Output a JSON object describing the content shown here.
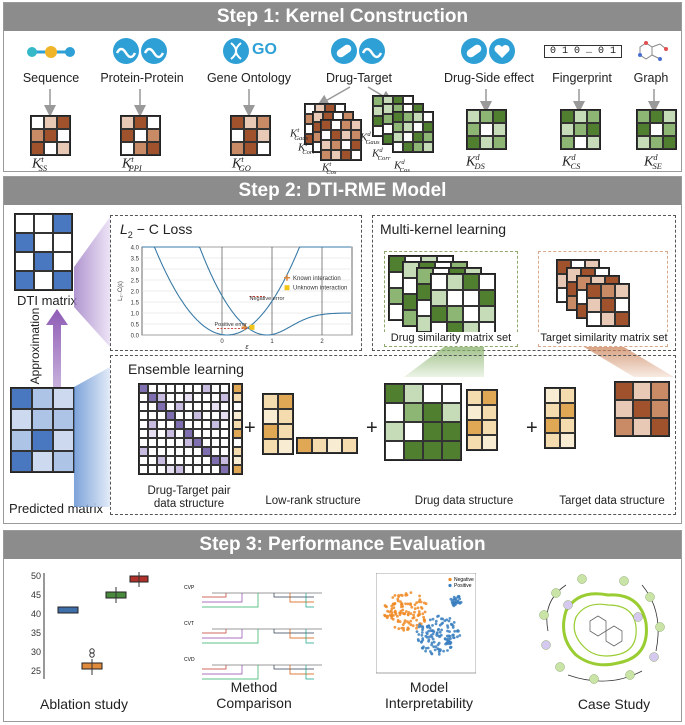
{
  "step1": {
    "title": "Step 1: Kernel Construction",
    "sources": {
      "sequence": "Sequence",
      "protein_protein": "Protein-Protein",
      "gene_ontology": "Gene Ontology",
      "go_icon": "GO",
      "drug_target": "Drug-Target",
      "drug_side_effect": "Drug-Side effect",
      "fingerprint": "Fingerprint",
      "fingerprint_bits": "0 1 0 … 0 1",
      "graph": "Graph"
    },
    "kernel_names": {
      "k_ss": "K",
      "k_ss_sup": "t",
      "k_ss_sub": "SS",
      "k_ppi": "K",
      "k_ppi_sup": "t",
      "k_ppi_sub": "PPI",
      "k_go": "K",
      "k_go_sup": "t",
      "k_go_sub": "GO",
      "k_t_gaus": "K",
      "k_t_gaus_sup": "t",
      "k_t_gaus_sub": "Gaus",
      "k_t_corr": "K",
      "k_t_corr_sup": "t",
      "k_t_corr_sub": "Corr",
      "k_t_cos": "K",
      "k_t_cos_sup": "t",
      "k_t_cos_sub": "Cos",
      "k_d_gaus": "K",
      "k_d_gaus_sup": "d",
      "k_d_gaus_sub": "Gaus",
      "k_d_corr": "K",
      "k_d_corr_sup": "d",
      "k_d_corr_sub": "Corr",
      "k_d_cos": "K",
      "k_d_cos_sup": "d",
      "k_d_cos_sub": "Cos",
      "k_ds": "K",
      "k_ds_sup": "d",
      "k_ds_sub": "DS",
      "k_cs": "K",
      "k_cs_sup": "d",
      "k_cs_sub": "CS",
      "k_se": "K",
      "k_se_sup": "d",
      "k_se_sub": "SE"
    }
  },
  "step2": {
    "title": "Step 2: DTI-RME Model",
    "dti_matrix": "DTI matrix",
    "approximation": "Approximation",
    "predicted_matrix": "Predicted matrix",
    "loss": {
      "title_math": "L",
      "title_sub": "2",
      "title_rest": " − C  Loss",
      "ylabel": "L₂₋C(ε)",
      "xlabel": "ε",
      "legend_known": "Known interaction",
      "legend_unknown": "Unknown interaction",
      "negative_error": "Negative error",
      "positive_error": "Positive error",
      "yticks": [
        "0.0",
        "0.5",
        "1.0",
        "1.5",
        "2.0",
        "2.5",
        "3.0",
        "3.5",
        "4.0"
      ],
      "xticks": [
        "0",
        "1",
        "2"
      ]
    },
    "multi_kernel": {
      "title": "Multi-kernel learning",
      "drug_set": "Drug similarity matrix set",
      "target_set": "Target similarity matrix set"
    },
    "ensemble": {
      "title": "Ensemble learning",
      "pair_structure_line1": "Drug-Target pair",
      "pair_structure_line2": "data structure",
      "low_rank": "Low-rank structure",
      "drug_structure": "Drug data structure",
      "target_structure": "Target data structure",
      "plus": "+"
    }
  },
  "step3": {
    "title": "Step 3: Performance Evaluation",
    "ablation": "Ablation study",
    "method_line1": "Method",
    "method_line2": "Comparison",
    "model_line1": "Model",
    "model_line2": "Interpretability",
    "case_study": "Case Study",
    "boxplot_yticks": [
      "50",
      "45",
      "40",
      "35",
      "30",
      "25"
    ],
    "tsne_legend_negative": "Negative",
    "tsne_legend_positive": "Positive",
    "cd_labels": [
      "CVP",
      "CVT",
      "CVD"
    ]
  },
  "colors": {
    "step_bar": "#8c8c8c",
    "brown": "#a0522d",
    "green": "#4f7f2f",
    "blue": "#4a78c0",
    "purple": "#8e73b8",
    "tan": "#d9a441",
    "icon_blue": "#2ea0d6"
  }
}
